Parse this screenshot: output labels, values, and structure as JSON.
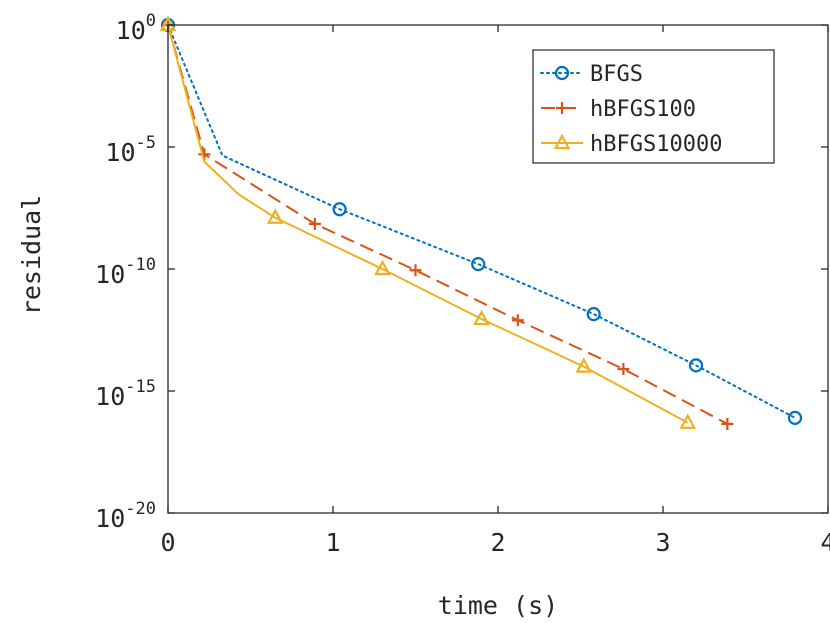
{
  "chart_data": {
    "type": "line",
    "title": "",
    "xlabel": "time (s)",
    "ylabel": "residual",
    "xlim": [
      0,
      4
    ],
    "ylim_log10": [
      -20,
      0
    ],
    "yscale": "log",
    "xticks": [
      "0",
      "1",
      "2",
      "3",
      "4"
    ],
    "yticks": [
      {
        "base": "10",
        "exp": "0"
      },
      {
        "base": "10",
        "exp": "-5"
      },
      {
        "base": "10",
        "exp": "-10"
      },
      {
        "base": "10",
        "exp": "-15"
      },
      {
        "base": "10",
        "exp": "-20"
      }
    ],
    "grid": false,
    "legend_position": "top-right",
    "series": [
      {
        "name": "BFGS",
        "color": "#0072BD",
        "line": "dotted",
        "marker": "circle",
        "x": [
          0,
          0.33,
          1.04,
          1.88,
          2.58,
          3.2,
          3.8
        ],
        "log10_y": [
          0,
          -5.35,
          -7.55,
          -9.8,
          -11.85,
          -13.95,
          -16.1
        ],
        "marker_indices": [
          0,
          2,
          3,
          4,
          5,
          6
        ]
      },
      {
        "name": "hBFGS100",
        "color": "#D95319",
        "line": "dashed",
        "marker": "plus",
        "x": [
          0,
          0.22,
          0.89,
          1.5,
          2.12,
          2.76,
          3.39
        ],
        "log10_y": [
          0,
          -5.3,
          -8.15,
          -10.05,
          -12.1,
          -14.1,
          -16.35
        ],
        "marker_indices": [
          0,
          1,
          2,
          3,
          4,
          5,
          6
        ]
      },
      {
        "name": "hBFGS10000",
        "color": "#EDB120",
        "line": "solid",
        "marker": "triangle",
        "x": [
          0,
          0.22,
          0.43,
          0.65,
          1.3,
          1.9,
          2.52,
          3.15
        ],
        "log10_y": [
          0,
          -5.6,
          -6.95,
          -7.9,
          -10.0,
          -12.05,
          -14.0,
          -16.3
        ],
        "marker_indices": [
          0,
          3,
          4,
          5,
          6,
          7
        ]
      }
    ]
  }
}
